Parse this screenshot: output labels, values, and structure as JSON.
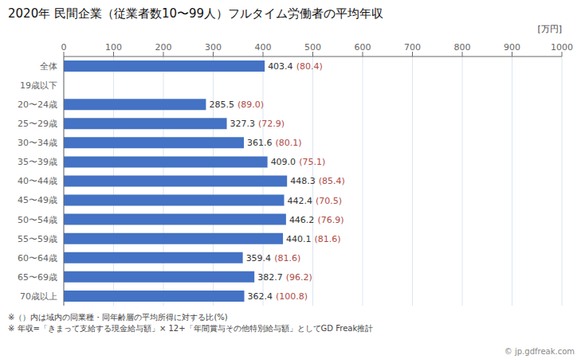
{
  "chart_data": {
    "type": "bar",
    "orientation": "horizontal",
    "title": "2020年 民間企業（従業者数10〜99人）フルタイム労働者の平均年収",
    "xlabel": "[万円]",
    "categories": [
      "全体",
      "19歳以下",
      "20〜24歳",
      "25〜29歳",
      "30〜34歳",
      "35〜39歳",
      "40〜44歳",
      "45〜49歳",
      "50〜54歳",
      "55〜59歳",
      "60〜64歳",
      "65〜69歳",
      "70歳以上"
    ],
    "values": [
      403.4,
      0,
      285.5,
      327.3,
      361.6,
      409.0,
      448.3,
      442.4,
      446.2,
      440.1,
      359.4,
      382.7,
      362.4
    ],
    "value_labels": [
      "403.4",
      null,
      "285.5",
      "327.3",
      "361.6",
      "409.0",
      "448.3",
      "442.4",
      "446.2",
      "440.1",
      "359.4",
      "382.7",
      "362.4"
    ],
    "ratios": [
      "(80.4)",
      null,
      "(89.0)",
      "(72.9)",
      "(80.1)",
      "(75.1)",
      "(85.4)",
      "(70.5)",
      "(76.9)",
      "(81.6)",
      "(81.6)",
      "(96.2)",
      "(100.8)"
    ],
    "color": "#4472C4",
    "xlim": [
      0,
      1000
    ],
    "xticks": [
      0,
      100,
      200,
      300,
      400,
      500,
      600,
      700,
      800,
      900,
      1000
    ],
    "grid": true,
    "data_labels": true,
    "footnotes": [
      "※（）内は域内の同業種・同年齢層の平均所得に対する比(%)",
      "※ 年収=「きまって支給する現金給与額」× 12+「年間賞与その他特別給与額」としてGD Freak推計"
    ],
    "watermark": "© jp.gdfreak.com"
  }
}
